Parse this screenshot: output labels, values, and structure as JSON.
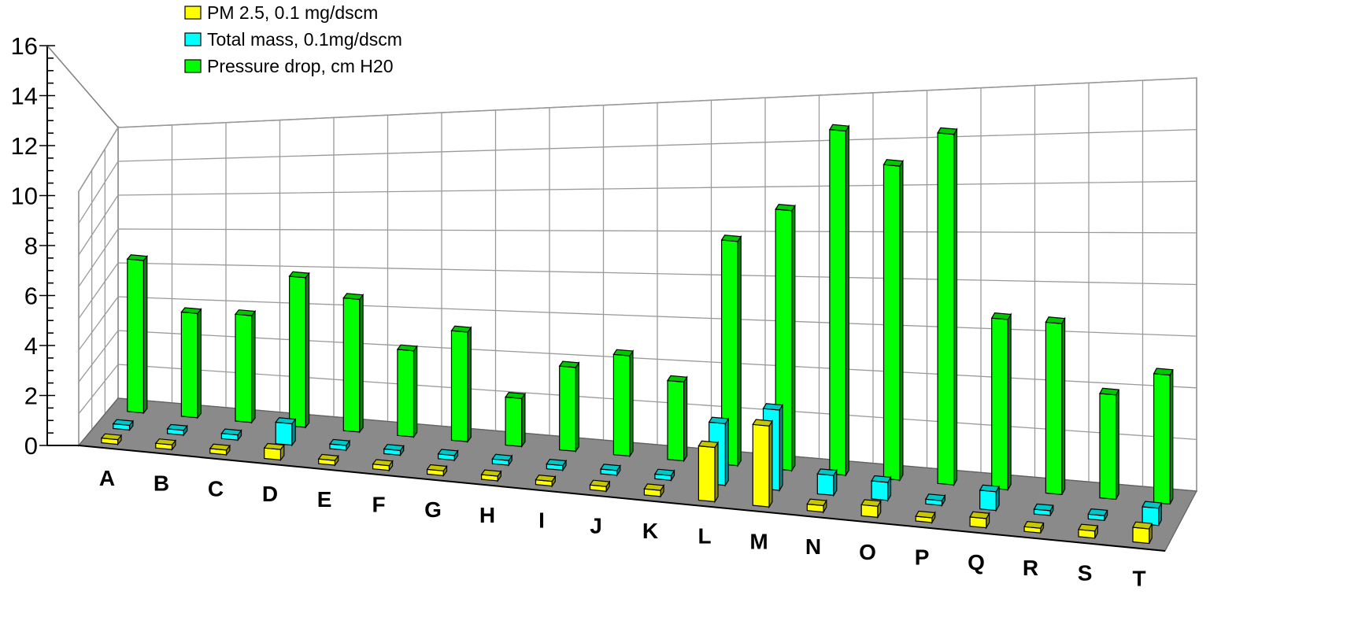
{
  "chart_data": {
    "type": "bar",
    "subtype": "3d-clustered-depth",
    "title": "",
    "xlabel": "",
    "ylabel": "",
    "ylim": [
      0,
      16
    ],
    "y_ticks": [
      0,
      2,
      4,
      6,
      8,
      10,
      12,
      14,
      16
    ],
    "grid": true,
    "legend_position": "top-left",
    "categories": [
      "A",
      "B",
      "C",
      "D",
      "E",
      "F",
      "G",
      "H",
      "I",
      "J",
      "K",
      "L",
      "M",
      "N",
      "O",
      "P",
      "Q",
      "R",
      "S",
      "T"
    ],
    "series": [
      {
        "name": "PM 2.5, 0.1 mg/dscm",
        "color": "#ffff00",
        "values": [
          0.2,
          0.1,
          0.1,
          0.6,
          0.1,
          0.2,
          0.1,
          0.1,
          0.2,
          0.1,
          0.3,
          2.6,
          3.8,
          0.3,
          0.5,
          0.2,
          0.4,
          0.2,
          0.3,
          0.6
        ]
      },
      {
        "name": "Total mass, 0.1mg/dscm",
        "color": "#00ffff",
        "values": [
          0.2,
          0.1,
          0.3,
          1.2,
          0.2,
          0.2,
          0.2,
          0.1,
          0.1,
          0.1,
          0.2,
          2.9,
          3.7,
          0.9,
          0.8,
          0.2,
          0.8,
          0.2,
          0.2,
          0.7
        ]
      },
      {
        "name": "Pressure drop, cm H20",
        "color": "#00ff00",
        "values": [
          9,
          6,
          6,
          8.2,
          7.1,
          4.5,
          5.6,
          2.4,
          4.1,
          4.8,
          3.7,
          10.3,
          11.7,
          15.2,
          13.6,
          14.9,
          7.1,
          7,
          4.2,
          5.1
        ]
      }
    ]
  }
}
